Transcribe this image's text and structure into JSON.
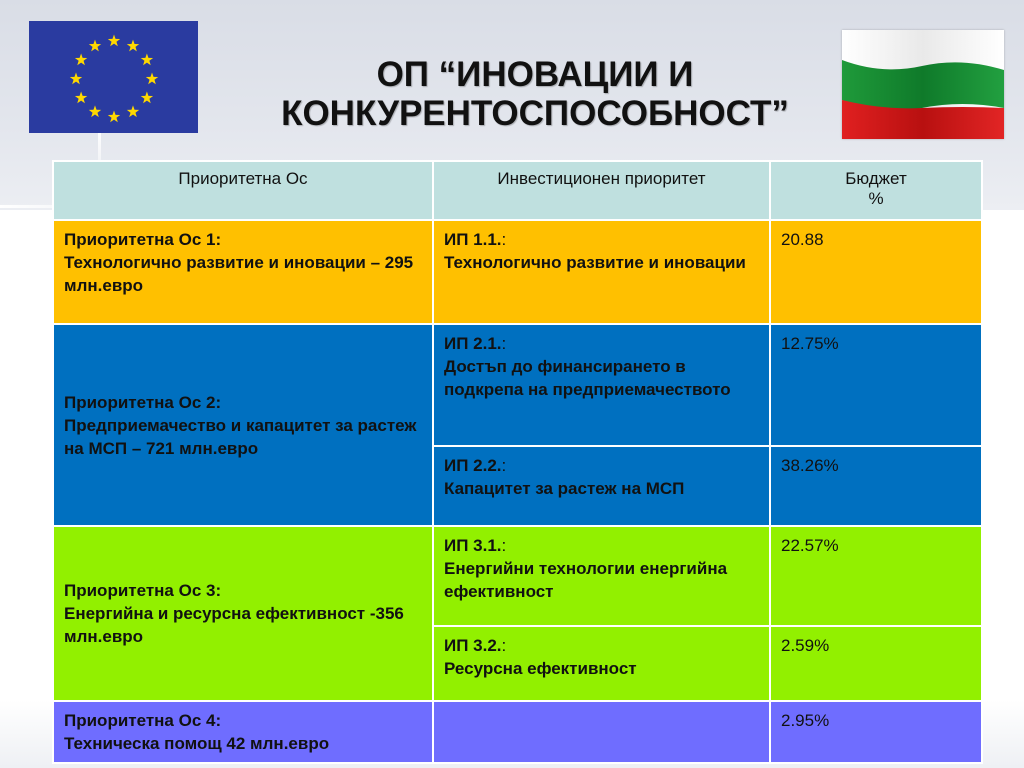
{
  "title": "ОП “ИНОВАЦИИ И КОНКУРЕНТОСПОСОБНОСТ”",
  "colors": {
    "header": "#bfe0df",
    "axis1": "#ffc000",
    "axis2": "#0070c0",
    "axis3": "#92f000",
    "axis4": "#6f6dff"
  },
  "table": {
    "headers": {
      "axis": "Приоритетна Ос",
      "investment": "Инвестиционен приоритет",
      "budget_line1": "Бюджет",
      "budget_line2": "%"
    },
    "axes": [
      {
        "name": "Приоритетна Ос 1:",
        "description": "Технологично развитие и иновации – 295 млн.евро",
        "priorities": [
          {
            "code": "ИП 1.1.",
            "colon": ":",
            "text": "Технологично развитие и иновации",
            "budget": "20.88"
          }
        ]
      },
      {
        "name": "Приоритетна Ос 2:",
        "description": "Предприемачество и капацитет за растеж на МСП – 721 млн.евро",
        "priorities": [
          {
            "code": "ИП 2.1.",
            "colon": ":",
            "text": "Достъп до финансирането в подкрепа на предприемачеството",
            "budget": "12.75%"
          },
          {
            "code": "ИП 2.2.",
            "colon": ":",
            "text": "Капацитет за растеж на МСП",
            "budget": "38.26%"
          }
        ]
      },
      {
        "name": "Приоритетна Ос 3:",
        "description": "Енергийна и ресурсна ефективност -356 млн.евро",
        "priorities": [
          {
            "code": "ИП 3.1.",
            "colon": ":",
            "text": "Енергийни технологии енергийна ефективност",
            "budget": "22.57%"
          },
          {
            "code": "ИП 3.2.",
            "colon": ":",
            "text": "Ресурсна ефективност",
            "budget": "2.59%"
          }
        ]
      },
      {
        "name": "Приоритетна Ос 4:",
        "description": "Техническа помощ 42 млн.евро",
        "priorities": [
          {
            "code": "",
            "colon": "",
            "text": "",
            "budget": "2.95%"
          }
        ]
      }
    ]
  }
}
